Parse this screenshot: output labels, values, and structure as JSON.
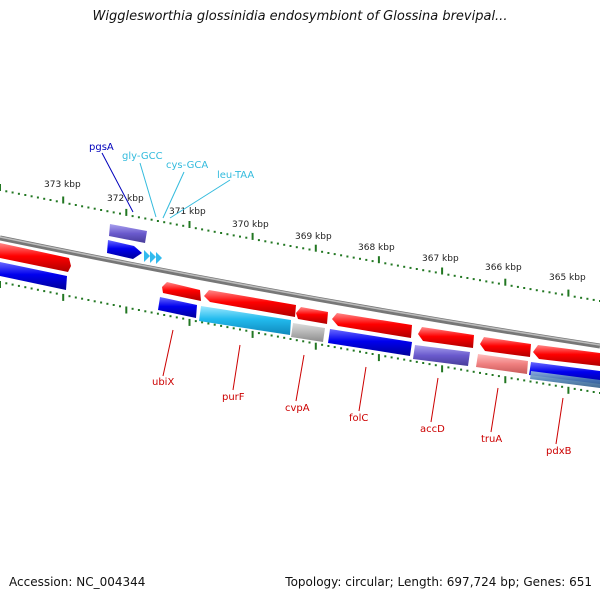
{
  "title": "Wigglesworthia glossinidia endosymbiont of Glossina brevipal...",
  "footer": {
    "accession": "Accession: NC_004344",
    "summary": "Topology: circular; Length: 697,724 bp; Genes: 651"
  },
  "scale_labels": [
    "373 kbp",
    "372 kbp",
    "371 kbp",
    "370 kbp",
    "369 kbp",
    "368 kbp",
    "367 kbp",
    "366 kbp",
    "365 kbp"
  ],
  "colors": {
    "backbone": "#888888",
    "cds_forward": "#ff0000",
    "cds_reverse": "#0000ee",
    "trna": "#33ccff",
    "tick": "#227722",
    "label_reverse": "#cc0000",
    "label_forward": "#0000bb",
    "label_trna": "#33bbdd"
  },
  "genes_top": [
    {
      "name": "pgsA",
      "color": "#0000bb"
    },
    {
      "name": "gly-GCC",
      "color": "#33bbdd"
    },
    {
      "name": "cys-GCA",
      "color": "#33bbdd"
    },
    {
      "name": "leu-TAA",
      "color": "#33bbdd"
    }
  ],
  "genes_bottom": [
    "ubiX",
    "purF",
    "cvpA",
    "folC",
    "accD",
    "truA",
    "pdxB"
  ]
}
